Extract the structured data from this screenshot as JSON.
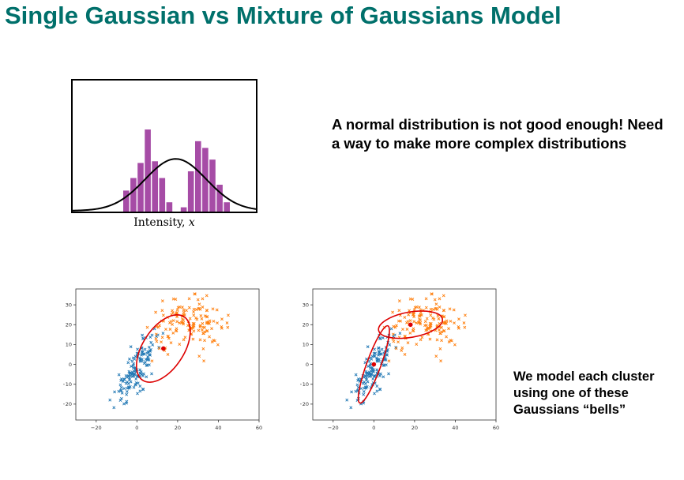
{
  "slide": {
    "title": "Single Gaussian vs Mixture of Gaussians Model",
    "callout_top": "A normal distribution is not good enough!  Need a way to make more complex distributions",
    "callout_bottom": "We model each cluster using one of these Gaussians “bells”"
  },
  "chart_data": [
    {
      "type": "bar",
      "xlabel_text": "Intensity, ",
      "xlabel_var": "x",
      "bar_color": "#a64ca6",
      "curve_color": "#000000",
      "values": [
        0.27,
        0.42,
        0.6,
        1.0,
        0.62,
        0.42,
        0.13,
        0.0,
        0.07,
        0.5,
        0.86,
        0.78,
        0.64,
        0.34,
        0.13
      ],
      "curve": {
        "type": "single-gaussian-fit"
      },
      "grid": false
    },
    {
      "type": "scatter",
      "xlim": [
        -30,
        60
      ],
      "ylim": [
        -28,
        38
      ],
      "xticks": [
        -20,
        0,
        20,
        40,
        60
      ],
      "yticks": [
        -20,
        -10,
        0,
        10,
        20,
        30
      ],
      "clusters": [
        {
          "color": "#1f77b4",
          "mean": [
            0,
            -2
          ],
          "std": [
            5.5,
            9
          ],
          "rho": 0.8,
          "n": 150
        },
        {
          "color": "#ff7f0e",
          "mean": [
            25,
            20
          ],
          "std": [
            9,
            6
          ],
          "rho": 0.1,
          "n": 150
        }
      ],
      "ellipses": [
        {
          "center": [
            13,
            8
          ],
          "rx": 26,
          "ry": 48,
          "angle_deg": 33,
          "color": "#dd0000"
        }
      ],
      "centers": [
        [
          13,
          8
        ]
      ],
      "center_color": "#dd0000",
      "grid": false
    },
    {
      "type": "scatter",
      "xlim": [
        -30,
        60
      ],
      "ylim": [
        -28,
        38
      ],
      "xticks": [
        -20,
        0,
        20,
        40,
        60
      ],
      "yticks": [
        -20,
        -10,
        0,
        10,
        20,
        30
      ],
      "clusters": [
        {
          "color": "#1f77b4",
          "mean": [
            0,
            -2
          ],
          "std": [
            5.5,
            9
          ],
          "rho": 0.8,
          "n": 150
        },
        {
          "color": "#ff7f0e",
          "mean": [
            25,
            20
          ],
          "std": [
            9,
            6
          ],
          "rho": 0.1,
          "n": 150
        }
      ],
      "ellipses": [
        {
          "center": [
            0,
            0
          ],
          "rx": 9,
          "ry": 52,
          "angle_deg": 20,
          "color": "#dd0000"
        },
        {
          "center": [
            18,
            20
          ],
          "rx": 41,
          "ry": 16,
          "angle_deg": -10,
          "color": "#dd0000"
        }
      ],
      "centers": [
        [
          0,
          0
        ],
        [
          18,
          20
        ]
      ],
      "center_color": "#dd0000",
      "grid": false
    }
  ]
}
